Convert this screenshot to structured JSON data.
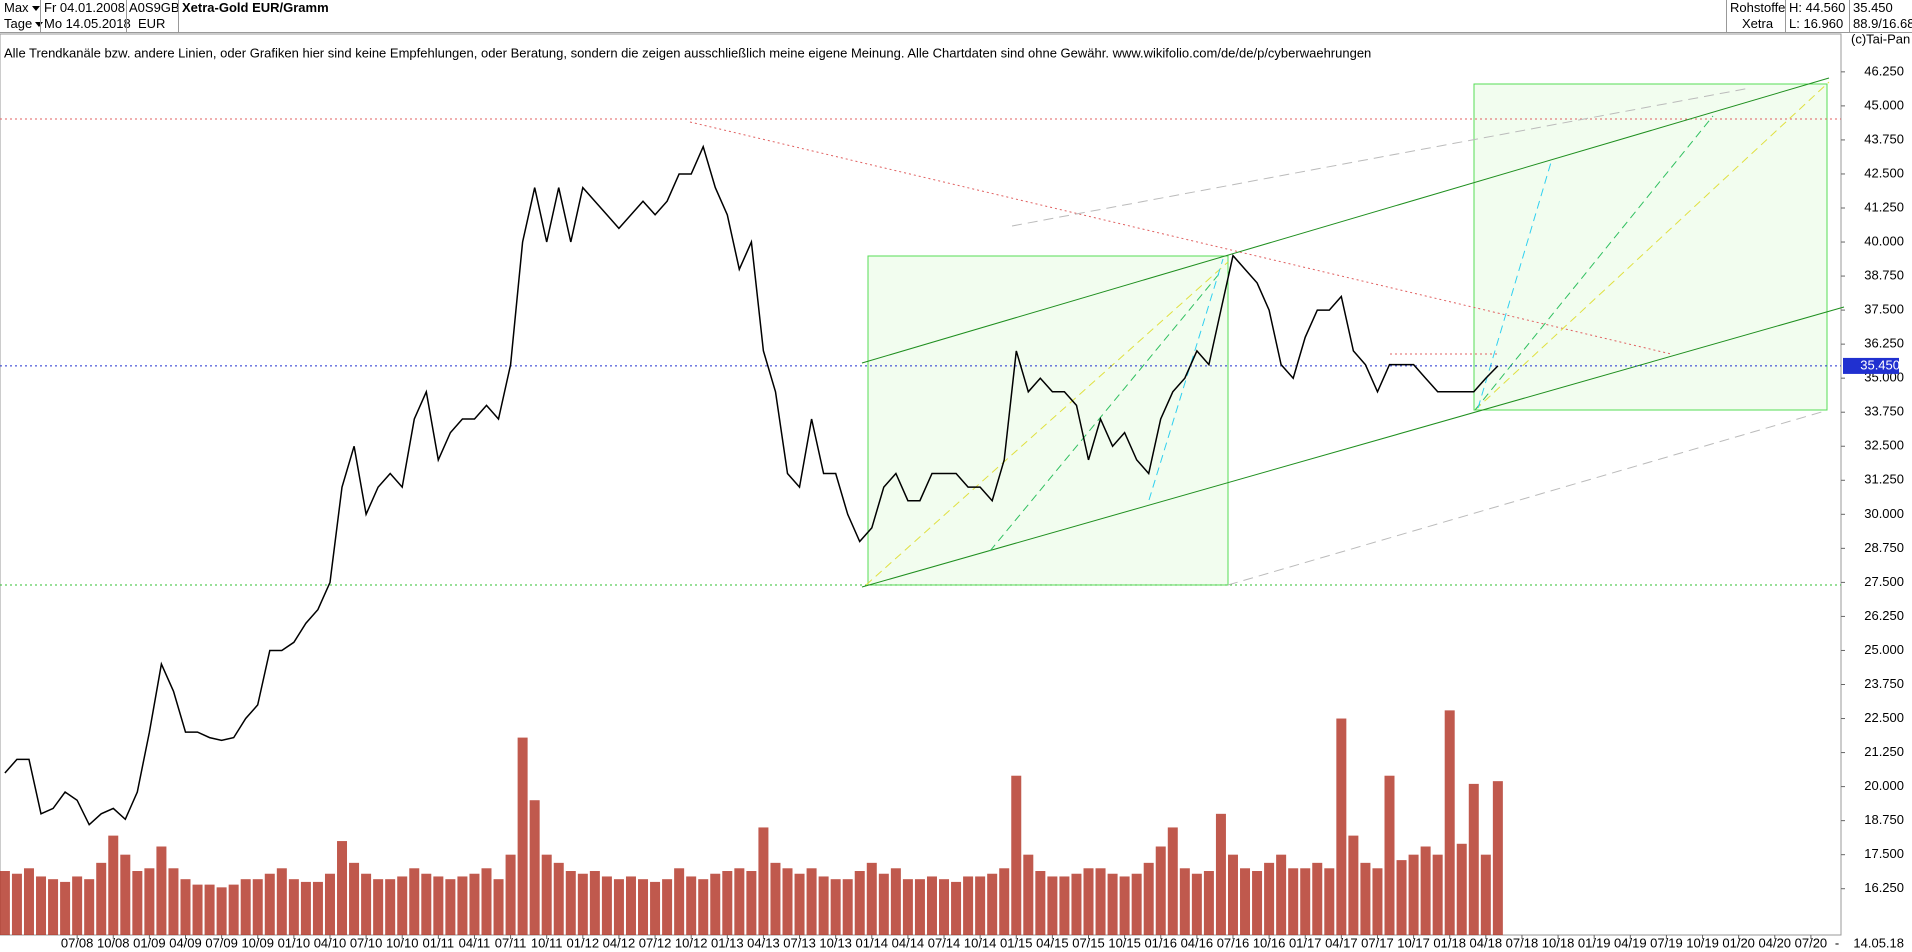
{
  "header": {
    "range": "Max",
    "period": "Tage",
    "from": "Fr 04.01.2008",
    "to": "Mo 14.05.2018",
    "isin": "A0S9GB",
    "currency": "EUR",
    "group": "Rohstoffe",
    "exchange": "Xetra",
    "high": "H: 44.560",
    "low": "L: 16.960",
    "price": "35.450",
    "ratio": "88.9/16.68",
    "copyright": "(c)Tai-Pan",
    "disclaimer": "Alle Trendkanäle bzw. andere Linien, oder Grafiken hier sind keine Empfehlungen, oder Beratung, sondern die zeigen ausschließlich meine eigene Meinung. Alle Chartdaten sind ohne Gewähr.  www.wikifolio.com/de/de/p/cyberwaehrungen",
    "end_date": "14.05.18",
    "end_mark": "-"
  },
  "chart_data": {
    "type": "line",
    "title": "Xetra-Gold EUR/Gramm",
    "color": "#000000",
    "volume_color": "#b03020",
    "current_price": {
      "value": 35.45,
      "label": "35.450"
    },
    "categories": [
      null,
      null,
      null,
      null,
      null,
      null,
      "07/08",
      null,
      null,
      "10/08",
      null,
      null,
      "01/09",
      null,
      null,
      "04/09",
      null,
      null,
      "07/09",
      null,
      null,
      "10/09",
      null,
      null,
      "01/10",
      null,
      null,
      "04/10",
      null,
      null,
      "07/10",
      null,
      null,
      "10/10",
      null,
      null,
      "01/11",
      null,
      null,
      "04/11",
      null,
      null,
      "07/11",
      null,
      null,
      "10/11",
      null,
      null,
      "01/12",
      null,
      null,
      "04/12",
      null,
      null,
      "07/12",
      null,
      null,
      "10/12",
      null,
      null,
      "01/13",
      null,
      null,
      "04/13",
      null,
      null,
      "07/13",
      null,
      null,
      "10/13",
      null,
      null,
      "01/14",
      null,
      null,
      "04/14",
      null,
      null,
      "07/14",
      null,
      null,
      "10/14",
      null,
      null,
      "01/15",
      null,
      null,
      "04/15",
      null,
      null,
      "07/15",
      null,
      null,
      "10/15",
      null,
      null,
      "01/16",
      null,
      null,
      "04/16",
      null,
      null,
      "07/16",
      null,
      null,
      "10/16",
      null,
      null,
      "01/17",
      null,
      null,
      "04/17",
      null,
      null,
      "07/17",
      null,
      null,
      "10/17",
      null,
      null,
      "01/18",
      null,
      null,
      "04/18",
      null,
      null,
      "07/18",
      null,
      null,
      "10/18",
      null,
      null,
      "01/19",
      null,
      null,
      "04/19",
      null,
      null,
      "07/19",
      null,
      null,
      "10/19",
      null,
      null,
      "01/20",
      null,
      null,
      "04/20",
      null,
      null,
      "07/20"
    ],
    "values": [
      20.5,
      21,
      21,
      19,
      19.2,
      19.8,
      19.5,
      18.6,
      19,
      19.2,
      18.8,
      19.8,
      22,
      24.5,
      23.5,
      22,
      22,
      21.8,
      21.7,
      21.8,
      22.5,
      23,
      25,
      25,
      25.3,
      26,
      26.5,
      27.5,
      31,
      32.5,
      30,
      31,
      31.5,
      31,
      33.5,
      34.5,
      32,
      33,
      33.5,
      33.5,
      34,
      33.5,
      35.5,
      40,
      42,
      40,
      42,
      40,
      42,
      41.5,
      41,
      40.5,
      41,
      41.5,
      41,
      41.5,
      42.5,
      42.5,
      43.5,
      42,
      41,
      39,
      40,
      36,
      34.5,
      31.5,
      31,
      33.5,
      31.5,
      31.5,
      30,
      29,
      29.5,
      31,
      31.5,
      30.5,
      30.5,
      31.5,
      31.5,
      31.5,
      31,
      31,
      30.5,
      32,
      36,
      34.5,
      35,
      34.5,
      34.5,
      34,
      32,
      33.5,
      32.5,
      33,
      32,
      31.5,
      33.5,
      34.5,
      35,
      36,
      35.5,
      37.5,
      39.5,
      39,
      38.5,
      37.5,
      35.5,
      35,
      36.5,
      37.5,
      37.5,
      38,
      36,
      35.5,
      34.5,
      35.5,
      35.5,
      35.5,
      35,
      34.5,
      34.5,
      34.5,
      34.5,
      35,
      35.45,
      null,
      null,
      null,
      null,
      null,
      null,
      null,
      null,
      null,
      null,
      null,
      null,
      null,
      null,
      null,
      null,
      null,
      null,
      null,
      null,
      null,
      null,
      null,
      null,
      null,
      null
    ],
    "volume_values": [
      16.9,
      16.8,
      17.0,
      16.7,
      16.6,
      16.5,
      16.7,
      16.6,
      17.2,
      18.2,
      17.5,
      16.9,
      17.0,
      17.8,
      17.0,
      16.6,
      16.4,
      16.4,
      16.3,
      16.4,
      16.6,
      16.6,
      16.8,
      17.0,
      16.6,
      16.5,
      16.5,
      16.8,
      18.0,
      17.2,
      16.8,
      16.6,
      16.6,
      16.7,
      17.0,
      16.8,
      16.7,
      16.6,
      16.7,
      16.8,
      17.0,
      16.6,
      17.5,
      21.8,
      19.5,
      17.5,
      17.2,
      16.9,
      16.8,
      16.9,
      16.7,
      16.6,
      16.7,
      16.6,
      16.5,
      16.6,
      17.0,
      16.7,
      16.6,
      16.8,
      16.9,
      17.0,
      16.9,
      18.5,
      17.2,
      17.0,
      16.8,
      17.0,
      16.7,
      16.6,
      16.6,
      16.9,
      17.2,
      16.8,
      17.0,
      16.6,
      16.6,
      16.7,
      16.6,
      16.5,
      16.7,
      16.7,
      16.8,
      17.0,
      20.4,
      17.5,
      16.9,
      16.7,
      16.7,
      16.8,
      17.0,
      17.0,
      16.8,
      16.7,
      16.8,
      17.2,
      17.8,
      18.5,
      17.0,
      16.8,
      16.9,
      19.0,
      17.5,
      17.0,
      16.9,
      17.2,
      17.5,
      17.0,
      17.0,
      17.2,
      17.0,
      22.5,
      18.2,
      17.2,
      17.0,
      20.4,
      17.3,
      17.5,
      17.8,
      17.5,
      22.8,
      17.9,
      20.1,
      17.5,
      20.2,
      null,
      null,
      null,
      null,
      null,
      null,
      null,
      null,
      null,
      null,
      null,
      null,
      null,
      null,
      null,
      null,
      null,
      null,
      null,
      null,
      null,
      null,
      null,
      null,
      null,
      null
    ],
    "ylim": [
      14.55,
      47.64
    ],
    "yticks": [
      {
        "value": 16.25,
        "label": "16.250"
      },
      {
        "value": 17.5,
        "label": "17.500"
      },
      {
        "value": 18.75,
        "label": "18.750"
      },
      {
        "value": 20,
        "label": "20.000"
      },
      {
        "value": 21.25,
        "label": "21.250"
      },
      {
        "value": 22.5,
        "label": "22.500"
      },
      {
        "value": 23.75,
        "label": "23.750"
      },
      {
        "value": 25,
        "label": "25.000"
      },
      {
        "value": 26.25,
        "label": "26.250"
      },
      {
        "value": 27.5,
        "label": "27.500"
      },
      {
        "value": 28.75,
        "label": "28.750"
      },
      {
        "value": 30,
        "label": "30.000"
      },
      {
        "value": 31.25,
        "label": "31.250"
      },
      {
        "value": 32.5,
        "label": "32.500"
      },
      {
        "value": 33.75,
        "label": "33.750"
      },
      {
        "value": 35,
        "label": "35.000"
      },
      {
        "value": 36.25,
        "label": "36.250"
      },
      {
        "value": 37.5,
        "label": "37.500"
      },
      {
        "value": 38.75,
        "label": "38.750"
      },
      {
        "value": 40,
        "label": "40.000"
      },
      {
        "value": 41.25,
        "label": "41.250"
      },
      {
        "value": 42.5,
        "label": "42.500"
      },
      {
        "value": 43.75,
        "label": "43.750"
      },
      {
        "value": 45,
        "label": "45.000"
      },
      {
        "value": 46.25,
        "label": "46.250"
      }
    ]
  }
}
